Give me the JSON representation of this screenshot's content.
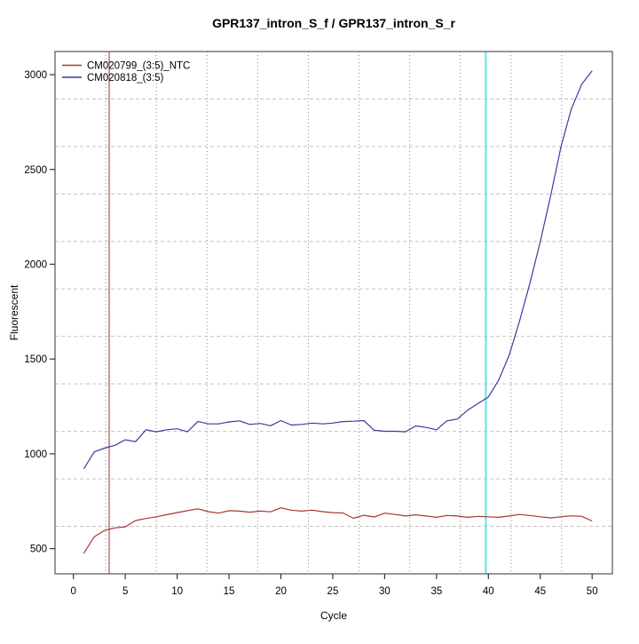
{
  "figure": {
    "title": "GPR137_intron_S_f / GPR137_intron_S_r"
  },
  "chart_data": {
    "type": "line",
    "title": "GPR137_intron_S_f / GPR137_intron_S_r",
    "xlabel": "Cycle",
    "ylabel": "Fluorescent",
    "xticks": [
      0,
      5,
      10,
      15,
      20,
      25,
      30,
      35,
      40,
      45,
      50
    ],
    "yticks": [
      500,
      1000,
      1500,
      2000,
      2500,
      3000
    ],
    "xlim": [
      -1.77,
      51.95
    ],
    "ylim": [
      367,
      3122
    ],
    "grid": {
      "nx": 11,
      "ny": 11,
      "vertical_style": "dotted",
      "horizontal_style": "dashed"
    },
    "x": [
      1,
      2,
      3,
      4,
      5,
      6,
      7,
      8,
      9,
      10,
      11,
      12,
      13,
      14,
      15,
      16,
      17,
      18,
      19,
      20,
      21,
      22,
      23,
      24,
      25,
      26,
      27,
      28,
      29,
      30,
      31,
      32,
      33,
      34,
      35,
      36,
      37,
      38,
      39,
      40,
      41,
      42,
      43,
      44,
      45,
      46,
      47,
      48,
      49,
      50
    ],
    "series": [
      {
        "name": "CM020799_(3:5)_NTC",
        "color": "#A5382F",
        "values": [
          475,
          562,
          596,
          609,
          615,
          648,
          659,
          668,
          679,
          690,
          700,
          710,
          695,
          687,
          700,
          698,
          692,
          698,
          694,
          715,
          703,
          698,
          703,
          695,
          690,
          688,
          660,
          676,
          667,
          687,
          680,
          672,
          678,
          672,
          665,
          675,
          672,
          665,
          670,
          668,
          665,
          672,
          680,
          675,
          668,
          662,
          668,
          673,
          670,
          646
        ]
      },
      {
        "name": "CM020818_(3:5)",
        "color": "#3A3AA0",
        "values": [
          920,
          1010,
          1030,
          1045,
          1074,
          1064,
          1127,
          1116,
          1127,
          1132,
          1116,
          1171,
          1158,
          1158,
          1168,
          1174,
          1155,
          1160,
          1148,
          1175,
          1152,
          1155,
          1162,
          1158,
          1162,
          1170,
          1172,
          1175,
          1124,
          1119,
          1119,
          1116,
          1147,
          1139,
          1127,
          1174,
          1183,
          1230,
          1265,
          1300,
          1390,
          1520,
          1700,
          1900,
          2120,
          2360,
          2620,
          2820,
          2950,
          3020
        ]
      }
    ],
    "marker_lines": [
      {
        "x": 3.45,
        "color": "#A52A2A",
        "width": 1,
        "name": "threshold-cycle-line"
      },
      {
        "x": 39.75,
        "color": "#55E9E9",
        "width": 2,
        "name": "cycle-40-marker-line"
      }
    ],
    "legend": {
      "position": "top-left",
      "entries": [
        "CM020799_(3:5)_NTC",
        "CM020818_(3:5)"
      ]
    }
  }
}
